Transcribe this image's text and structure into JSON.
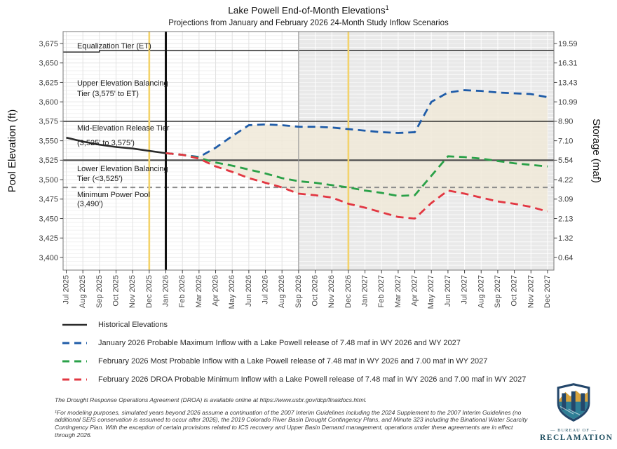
{
  "header": {
    "title": "Lake Powell End-of-Month Elevations",
    "title_sup": "1",
    "subtitle": "Projections from January and February 2026 24-Month Study Inflow Scenarios"
  },
  "axes": {
    "y_left_label": "Pool Elevation (ft)",
    "y_right_label": "Storage (maf)",
    "y_left_ticks": [
      "3,675",
      "3,650",
      "3,625",
      "3,600",
      "3,575",
      "3,550",
      "3,525",
      "3,500",
      "3,475",
      "3,450",
      "3,425",
      "3,400"
    ],
    "y_left_values": [
      3675,
      3650,
      3625,
      3600,
      3575,
      3550,
      3525,
      3500,
      3475,
      3450,
      3425,
      3400
    ],
    "y_right_ticks": [
      "19.59",
      "16.31",
      "13.43",
      "10.99",
      "8.90",
      "7.10",
      "5.54",
      "4.22",
      "3.09",
      "2.13",
      "1.32",
      "0.64"
    ]
  },
  "annotations": {
    "equalization": "Equalization Tier (ET)",
    "upper_1": "Upper Elevation Balancing",
    "upper_2": "Tier (3,575' to ET)",
    "mid_1": "Mid-Elevation Release Tier",
    "mid_2": "(3,525' to 3,575')",
    "lower_1": "Lower Elevation Balancing",
    "lower_2": "Tier (<3,525')",
    "minpool_1": "Minimum Power Pool",
    "minpool_2": "(3,490')"
  },
  "chart_data": {
    "type": "line",
    "x": [
      "Jul 2025",
      "Aug 2025",
      "Sep 2025",
      "Oct 2025",
      "Nov 2025",
      "Dec 2025",
      "Jan 2026",
      "Feb 2026",
      "Mar 2026",
      "Apr 2026",
      "May 2026",
      "Jun 2026",
      "Jul 2026",
      "Aug 2026",
      "Sep 2026",
      "Oct 2026",
      "Nov 2026",
      "Dec 2026",
      "Jan 2027",
      "Feb 2027",
      "Mar 2027",
      "Apr 2027",
      "May 2027",
      "Jun 2027",
      "Jul 2027",
      "Aug 2027",
      "Sep 2027",
      "Oct 2027",
      "Nov 2027",
      "Dec 2027"
    ],
    "xlabel": "",
    "ylabel_left": "Pool Elevation (ft)",
    "ylabel_right": "Storage (maf)",
    "ylim": [
      3400,
      3675
    ],
    "grid": true,
    "legend_position": "below",
    "series": [
      {
        "name": "Historical Elevations",
        "color": "#2b2b2b",
        "style": "solid",
        "start_index": 0,
        "values": [
          3554,
          3549,
          3545,
          3542,
          3540,
          3537,
          3534
        ]
      },
      {
        "name": "January 2026 Probable Maximum Inflow with a Lake Powell release of 7.48 maf in WY 2026 and WY 2027",
        "color": "#1f5ca8",
        "style": "dashed",
        "start_index": 6,
        "values": [
          3534,
          3532,
          3529,
          3541,
          3556,
          3570,
          3571,
          3570,
          3568,
          3568,
          3567,
          3565,
          3563,
          3561,
          3560,
          3561,
          3600,
          3612,
          3615,
          3614,
          3612,
          3611,
          3610,
          3606
        ]
      },
      {
        "name": "February 2026 Most Probable Inflow with a Lake Powell release of 7.48 maf in WY 2026 and 7.00 maf in WY 2027",
        "color": "#2aa148",
        "style": "dashed",
        "start_index": 6,
        "values": [
          3534,
          3532,
          3528,
          3522,
          3518,
          3513,
          3508,
          3502,
          3498,
          3496,
          3493,
          3490,
          3486,
          3483,
          3479,
          3480,
          3505,
          3530,
          3529,
          3527,
          3524,
          3521,
          3519,
          3517
        ]
      },
      {
        "name": "February 2026 DROA Probable Minimum Inflow with a Lake Powell release of 7.48 maf in WY 2026 and 7.00 maf in WY 2027",
        "color": "#e23742",
        "style": "dashed",
        "start_index": 6,
        "values": [
          3534,
          3532,
          3527,
          3517,
          3510,
          3502,
          3496,
          3490,
          3482,
          3480,
          3477,
          3469,
          3464,
          3458,
          3452,
          3450,
          3470,
          3486,
          3482,
          3477,
          3472,
          3469,
          3465,
          3459
        ]
      }
    ],
    "reference_lines": [
      {
        "name": "equalization-tier",
        "type": "step",
        "elevation_before": 3664,
        "elevation_after": 3666,
        "step_at": "Sep 2025",
        "color": "#1a1a1a",
        "width": 1.4
      },
      {
        "name": "tier-3575",
        "elevation": 3575,
        "color": "#1a1a1a",
        "width": 1.4
      },
      {
        "name": "tier-3525",
        "elevation": 3525,
        "color": "#4d4d4d",
        "width": 2.2
      },
      {
        "name": "minimum-power-pool",
        "elevation": 3490,
        "color": "#8c8c8c",
        "width": 2,
        "style": "dashed"
      }
    ],
    "vertical_lines": [
      {
        "month": "Dec 2025",
        "color": "#f3d36b",
        "width": 2.6
      },
      {
        "month": "Jan 2026",
        "color": "#111111",
        "width": 3
      },
      {
        "month": "Dec 2026",
        "color": "#f3d36b",
        "width": 2.6
      }
    ],
    "shaded_region": {
      "from": "Sep 2026",
      "to": "Dec 2027",
      "color": "#e9e9e9",
      "border_color": "#9b9b9b"
    },
    "envelope": {
      "between": [
        "January 2026 Probable Maximum Inflow",
        "February 2026 DROA Probable Minimum Inflow"
      ],
      "color": "#f0e9d8"
    }
  },
  "legend": {
    "items": [
      {
        "label": "Historical Elevations",
        "color": "#2b2b2b",
        "style": "solid"
      },
      {
        "label": "January 2026 Probable Maximum Inflow with a Lake Powell release of 7.48 maf in WY 2026 and WY 2027",
        "color": "#1f5ca8",
        "style": "dashed"
      },
      {
        "label": "February 2026 Most Probable Inflow with a Lake Powell release of 7.48 maf in WY 2026 and 7.00 maf in WY 2027",
        "color": "#2aa148",
        "style": "dashed"
      },
      {
        "label": "February 2026 DROA Probable Minimum Inflow with a Lake Powell release of 7.48 maf in WY 2026 and 7.00 maf in WY 2027",
        "color": "#e23742",
        "style": "dashed"
      }
    ]
  },
  "footnotes": {
    "droa": "The Drought Response Operations Agreement (DROA) is available online at https://www.usbr.gov/dcp/finaldocs.html.",
    "modeling": "¹For modeling purposes, simulated years beyond 2026 assume a continuation of the 2007 Interim Guidelines including the 2024 Supplement to the 2007 Interim Guidelines (no additional SEIS conservation is assumed to occur after 2026), the 2019 Colorado River Basin Drought Contingency Plans, and Minute 323 including the Binational Water Scarcity Contingency Plan. With the exception of certain provisions related to ICS recovery and Upper Basin Demand management, operations under these agreements are in effect through 2026."
  },
  "logo": {
    "bureau_of": "— BUREAU OF —",
    "reclamation": "RECLAMATION"
  }
}
